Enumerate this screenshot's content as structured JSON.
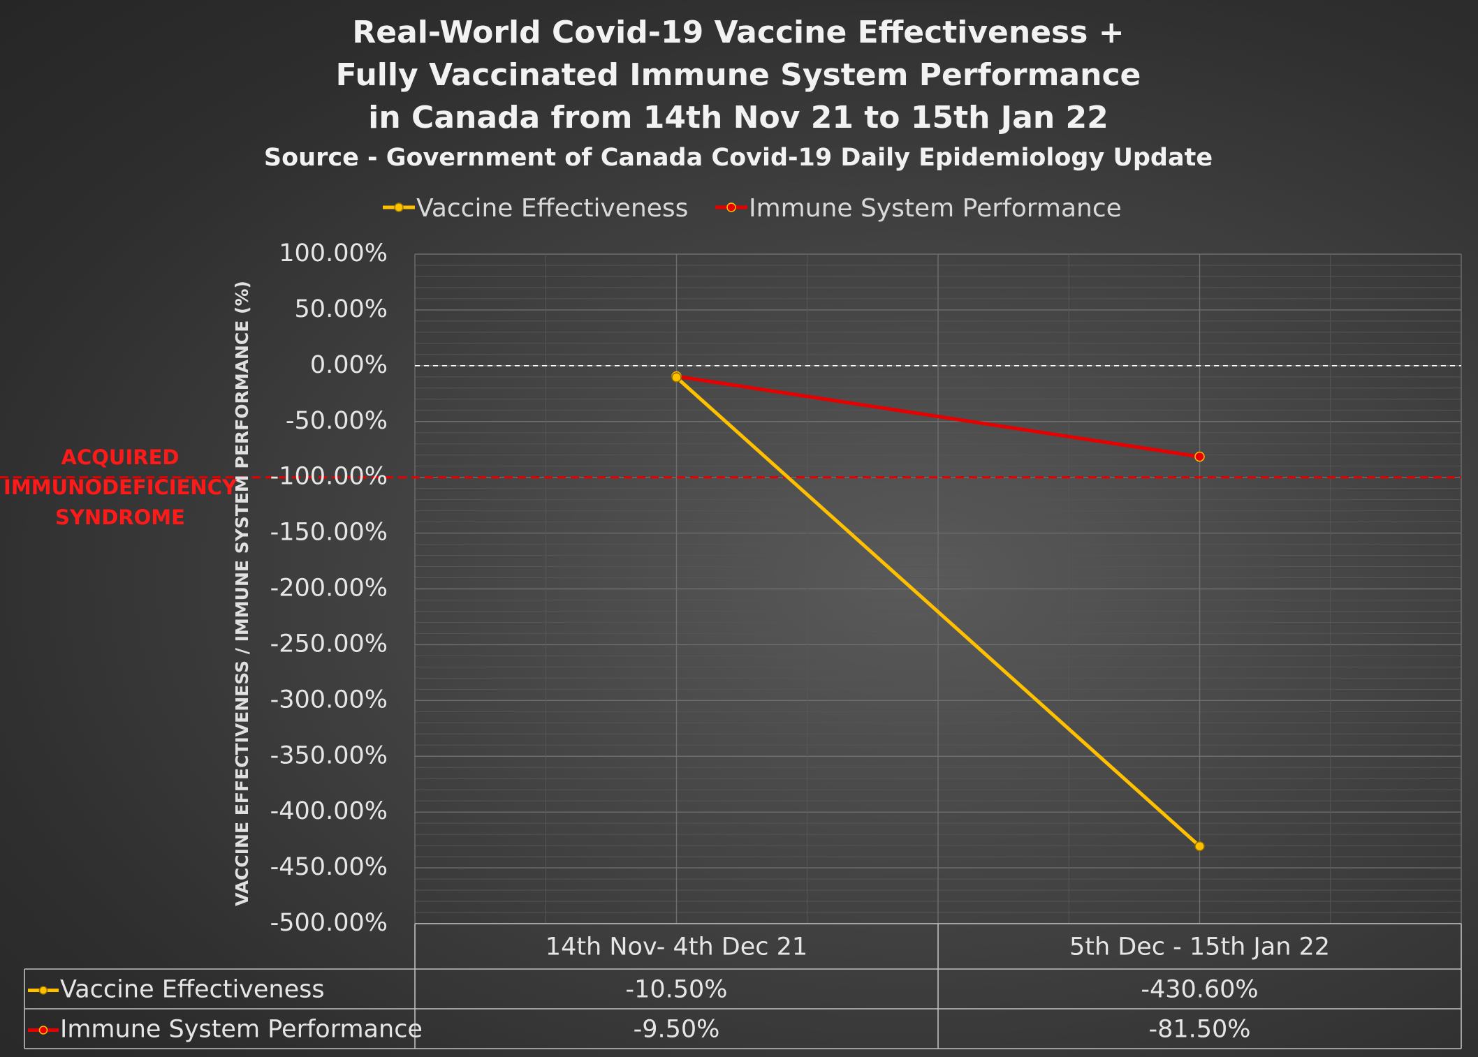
{
  "colors": {
    "vaccine": "#ffc000",
    "immune": "#e60000",
    "threshold": "#e60000",
    "gridline": "#6a6a6a",
    "table_border": "#bfbfbf"
  },
  "annotation": {
    "lines": [
      "ACQUIRED",
      "IMMUNODEFICIENCY",
      "SYNDROME"
    ],
    "threshold_value": -100
  },
  "chart_data": {
    "type": "line",
    "title": "Real-World Covid-19 Vaccine Effectiveness +",
    "title_lines": [
      "Real-World Covid-19 Vaccine Effectiveness +",
      "Fully Vaccinated Immune System Performance",
      "in Canada from 14th Nov 21 to 15th Jan 22"
    ],
    "subtitle": "Source - Government of Canada Covid-19 Daily Epidemiology Update",
    "ylabel": "VACCINE EFFECTIVENESS / IMMUNE SYSTEM PERFORMANCE (%)",
    "xlabel": "",
    "categories": [
      "14th Nov-  4th Dec 21",
      "5th Dec - 15th Jan 22"
    ],
    "series": [
      {
        "name": "Vaccine Effectiveness",
        "values": [
          -10.5,
          -430.6
        ],
        "labels": [
          "-10.50%",
          "-430.60%"
        ],
        "color": "#ffc000"
      },
      {
        "name": "Immune System Performance",
        "values": [
          -9.5,
          -81.5
        ],
        "labels": [
          "-9.50%",
          "-81.50%"
        ],
        "color": "#e60000"
      }
    ],
    "ylim": [
      -500,
      100
    ],
    "yticks": [
      100,
      50,
      0,
      -50,
      -100,
      -150,
      -200,
      -250,
      -300,
      -350,
      -400,
      -450,
      -500
    ],
    "ytick_labels": [
      "100.00%",
      "50.00%",
      "0.00%",
      "-50.00%",
      "-100.00%",
      "-150.00%",
      "-200.00%",
      "-250.00%",
      "-300.00%",
      "-350.00%",
      "-400.00%",
      "-450.00%",
      "-500.00%"
    ],
    "legend": "top-center",
    "grid": true,
    "data_table": true
  }
}
